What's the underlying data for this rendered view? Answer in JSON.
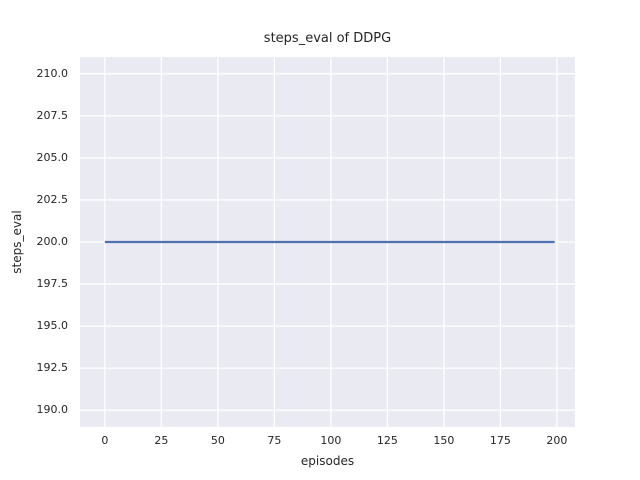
{
  "chart_data": {
    "type": "line",
    "title": "steps_eval of DDPG",
    "xlabel": "episodes",
    "ylabel": "steps_eval",
    "xlim": [
      -11,
      208
    ],
    "ylim": [
      189,
      211
    ],
    "xticks": [
      0,
      25,
      50,
      75,
      100,
      125,
      150,
      175,
      200
    ],
    "xtick_labels": [
      "0",
      "25",
      "50",
      "75",
      "100",
      "125",
      "150",
      "175",
      "200"
    ],
    "yticks": [
      190.0,
      192.5,
      195.0,
      197.5,
      200.0,
      202.5,
      205.0,
      207.5,
      210.0
    ],
    "ytick_labels": [
      "190.0",
      "192.5",
      "195.0",
      "197.5",
      "200.0",
      "202.5",
      "205.0",
      "207.5",
      "210.0"
    ],
    "grid": true,
    "legend_position": "none",
    "series": [
      {
        "name": "steps_eval of DDPG",
        "x": [
          0,
          199
        ],
        "y": [
          200,
          200
        ],
        "color": "#4c72b0",
        "linewidth": 2.2
      }
    ],
    "colors": {
      "figure_bg": "#ffffff",
      "plot_bg": "#eaeaf2",
      "grid": "#ffffff",
      "text": "#262626",
      "line": "#4c72b0"
    }
  }
}
